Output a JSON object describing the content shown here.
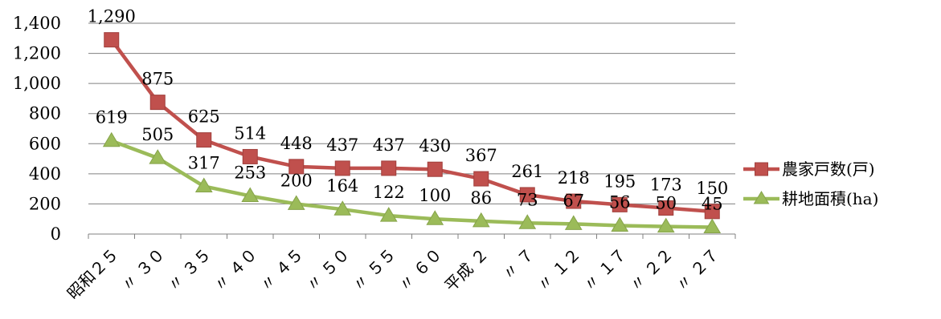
{
  "chart_data": {
    "type": "line",
    "categories": [
      "昭和２５",
      "〃 ３０",
      "〃 ３５",
      "〃 ４０",
      "〃 ４５",
      "〃 ５０",
      "〃 ５５",
      "〃 ６０",
      "平成 ２",
      "〃 ７",
      "〃 １２",
      "〃 １７",
      "〃 ２２",
      "〃 ２７"
    ],
    "series": [
      {
        "name": "農家戸数(戸)",
        "values": [
          1290,
          875,
          625,
          514,
          448,
          437,
          437,
          430,
          367,
          261,
          218,
          195,
          173,
          150
        ],
        "labels": [
          "1,290",
          "875",
          "625",
          "514",
          "448",
          "437",
          "437",
          "430",
          "367",
          "261",
          "218",
          "195",
          "173",
          "150"
        ],
        "color": "#c0504d",
        "marker": "square"
      },
      {
        "name": "耕地面積(ha)",
        "values": [
          619,
          505,
          317,
          253,
          200,
          164,
          122,
          100,
          86,
          73,
          67,
          56,
          50,
          45
        ],
        "labels": [
          "619",
          "505",
          "317",
          "253",
          "200",
          "164",
          "122",
          "100",
          "86",
          "73",
          "67",
          "56",
          "50",
          "45"
        ],
        "color": "#9bbb59",
        "marker": "triangle"
      }
    ],
    "yticks": [
      "0",
      "200",
      "400",
      "600",
      "800",
      "1,000",
      "1,200",
      "1,400"
    ],
    "ylim": [
      0,
      1400
    ],
    "grid": true,
    "legend_position": "right",
    "gridline_color": "#808080",
    "axis_color": "#808080"
  }
}
